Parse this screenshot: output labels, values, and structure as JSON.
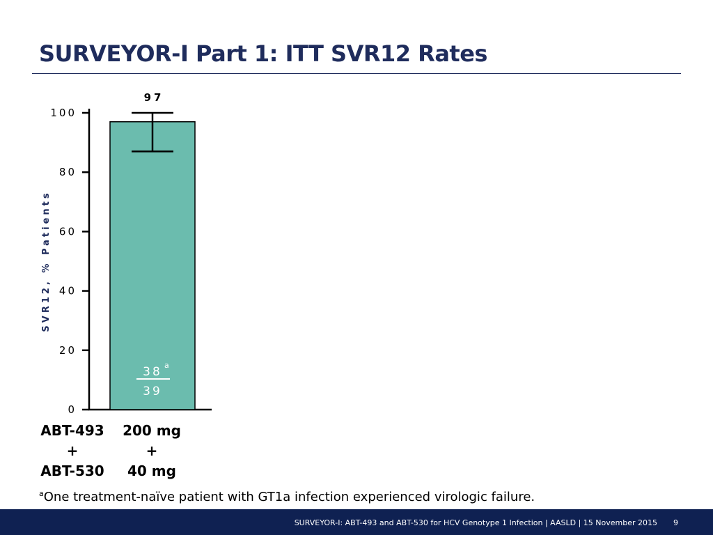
{
  "slide": {
    "title": "SURVEYOR-I Part 1: ITT SVR12 Rates",
    "footnote_marker": "a",
    "footnote_text": "One treatment-naïve patient with GT1a infection experienced virologic failure.",
    "footer_text": "SURVEYOR-I: ABT-493 and ABT-530 for HCV Genotype 1 Infection   | AASLD | 15 November 2015",
    "page_number": "9"
  },
  "chart_data": {
    "type": "bar",
    "ylabel": "SVR12, % Patients",
    "ylim": [
      0,
      100
    ],
    "yticks": [
      0,
      20,
      40,
      60,
      80,
      100
    ],
    "categories": [
      {
        "drug_lines": [
          "ABT-493",
          "+",
          "ABT-530"
        ],
        "dose_lines": [
          "200 mg",
          "+",
          "40 mg"
        ]
      }
    ],
    "values": [
      97
    ],
    "value_labels": [
      "97"
    ],
    "error_bars": [
      {
        "low": 87,
        "high": 100
      }
    ],
    "fractions": [
      {
        "numerator": "38",
        "numerator_marker": "a",
        "denominator": "39"
      }
    ],
    "colors": {
      "bar": "#6bbcae",
      "bar_edge": "#000000",
      "axis": "#000000",
      "ylabel": "#1f2c5c"
    }
  },
  "colors": {
    "title": "#1f2c5c",
    "footer_bg": "#0f2152"
  }
}
